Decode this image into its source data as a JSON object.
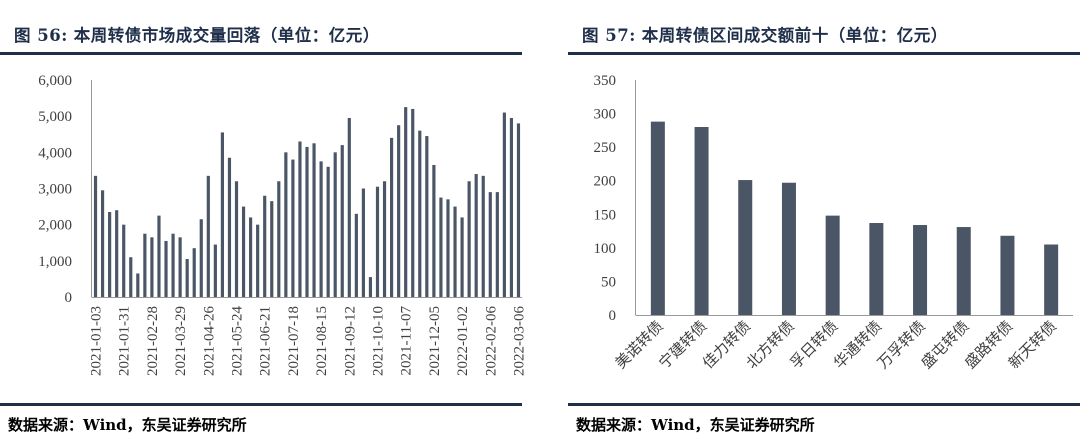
{
  "left": {
    "title_num": "图 56:",
    "title_text": "本周转债市场成交量回落（单位：亿元）",
    "source": "数据来源：Wind，东吴证券研究所"
  },
  "right": {
    "title_num": "图 57:",
    "title_text": "本周转债区间成交额前十（单位：亿元）",
    "source": "数据来源：Wind，东吴证券研究所"
  },
  "chart_data": [
    {
      "type": "bar",
      "title": "本周转债市场成交量回落（单位：亿元）",
      "ylim": [
        0,
        6000
      ],
      "yticks": [
        "0",
        "1,000",
        "2,000",
        "3,000",
        "4,000",
        "5,000",
        "6,000"
      ],
      "ytick_values": [
        0,
        1000,
        2000,
        3000,
        4000,
        5000,
        6000
      ],
      "x_tick_labels": [
        "2021-01-03",
        "2021-01-31",
        "2021-02-28",
        "2021-03-29",
        "2021-04-26",
        "2021-05-24",
        "2021-06-21",
        "2021-07-18",
        "2021-08-15",
        "2021-09-12",
        "2021-10-10",
        "2021-11-07",
        "2021-12-05",
        "2022-01-02",
        "2022-02-06",
        "2022-03-06"
      ],
      "x_tick_positions": [
        0,
        4,
        8,
        12,
        16,
        20,
        24,
        28,
        32,
        36,
        40,
        44,
        48,
        52,
        56,
        60
      ],
      "values": [
        3350,
        2950,
        2350,
        2400,
        2000,
        1100,
        650,
        1750,
        1650,
        2250,
        1550,
        1750,
        1650,
        1050,
        1350,
        2150,
        3350,
        1450,
        4550,
        3850,
        3200,
        2500,
        2200,
        2000,
        2800,
        2650,
        3200,
        4000,
        3800,
        4300,
        4150,
        4250,
        3750,
        3600,
        4000,
        4200,
        4950,
        2300,
        3000,
        550,
        3050,
        3200,
        4400,
        4750,
        5250,
        5200,
        4600,
        4450,
        3650,
        2750,
        2700,
        2500,
        2200,
        3200,
        3400,
        3350,
        2900,
        2900,
        5100,
        4950,
        4800
      ],
      "grid": false,
      "color": "#4a5566"
    },
    {
      "type": "bar",
      "title": "本周转债区间成交额前十（单位：亿元）",
      "ylim": [
        0,
        350
      ],
      "yticks": [
        "0",
        "50",
        "100",
        "150",
        "200",
        "250",
        "300",
        "350"
      ],
      "ytick_values": [
        0,
        50,
        100,
        150,
        200,
        250,
        300,
        350
      ],
      "categories": [
        "美诺转债",
        "宁建转债",
        "佳力转债",
        "北方转债",
        "孚日转债",
        "华通转债",
        "万孚转债",
        "盛屯转债",
        "盛路转债",
        "新天转债"
      ],
      "values": [
        288,
        280,
        201,
        197,
        148,
        137,
        134,
        131,
        118,
        105
      ],
      "grid": false,
      "color": "#4a5566"
    }
  ]
}
